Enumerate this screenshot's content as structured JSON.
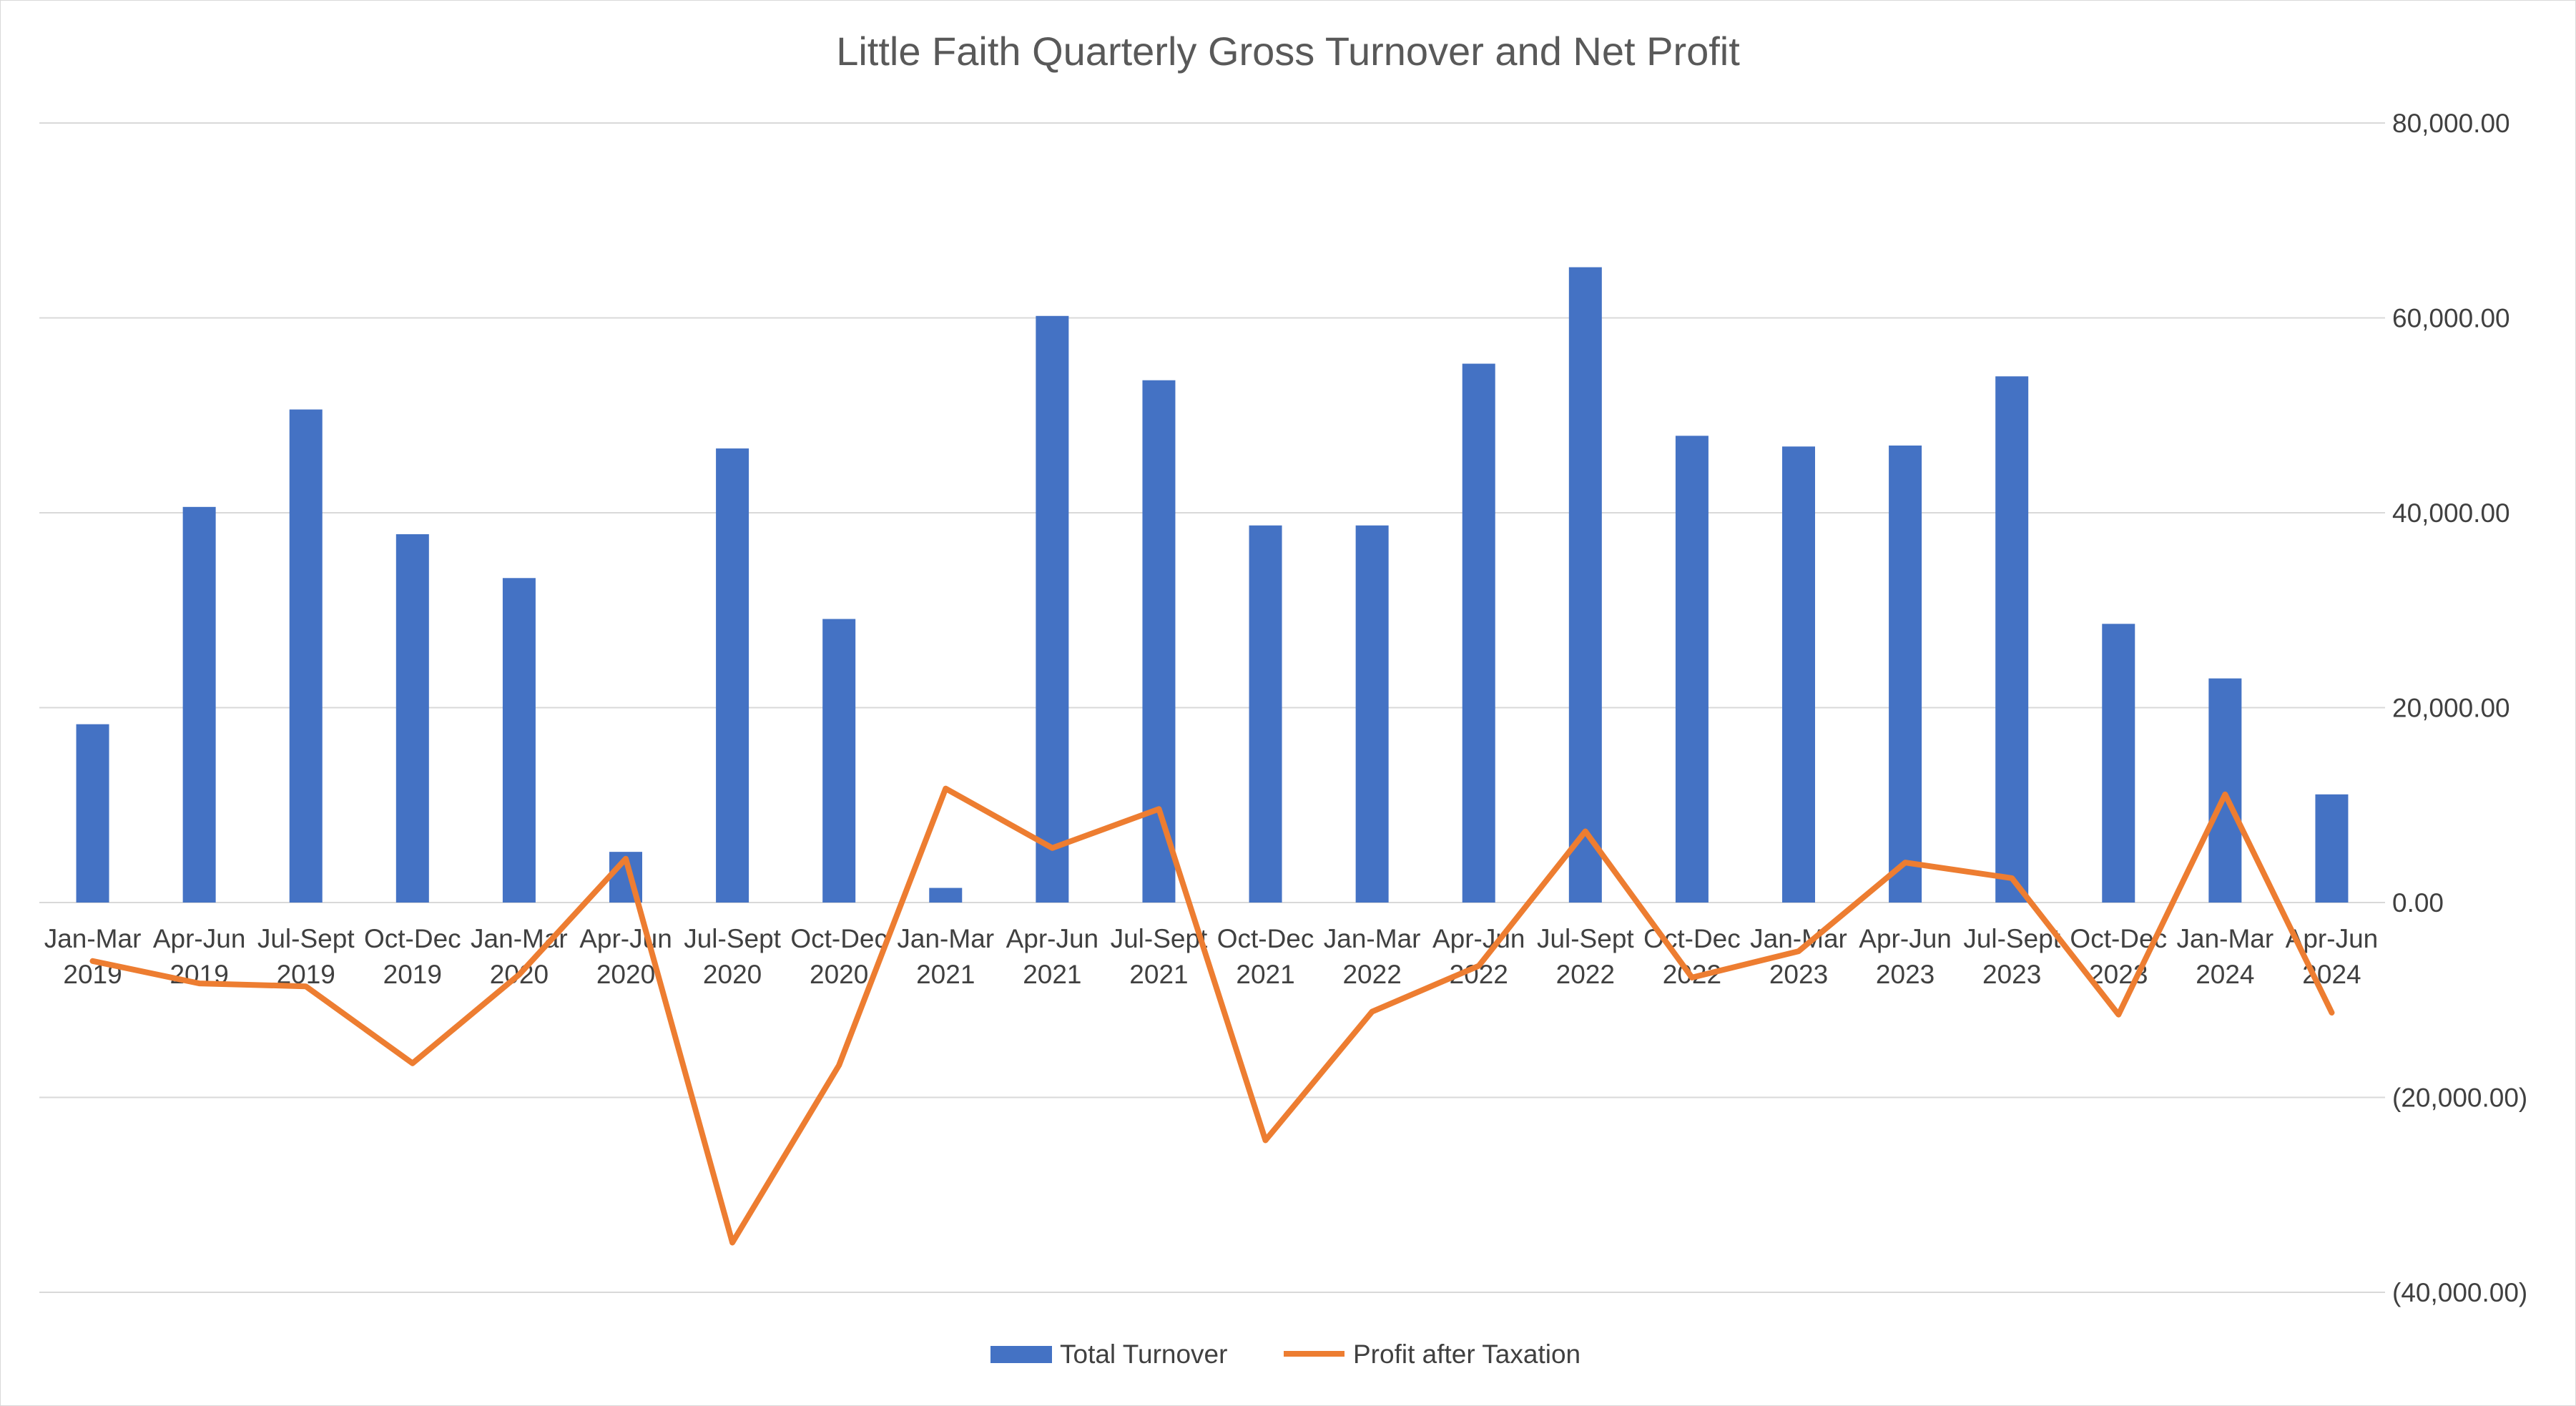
{
  "chart_data": {
    "type": "bar",
    "title": "Little Faith Quarterly Gross Turnover and Net Profit",
    "xlabel": "",
    "ylabel": "",
    "ylim": [
      -40000,
      80000
    ],
    "yticks": [
      80000,
      60000,
      40000,
      20000,
      0,
      -20000,
      -40000
    ],
    "ytick_labels": [
      "80,000.00",
      "60,000.00",
      "40,000.00",
      "20,000.00",
      "0.00",
      "(20,000.00)",
      "(40,000.00)"
    ],
    "grid": true,
    "legend_position": "bottom",
    "categories": [
      [
        "Jan-Mar",
        "2019"
      ],
      [
        "Apr-Jun",
        "2019"
      ],
      [
        "Jul-Sept",
        "2019"
      ],
      [
        "Oct-Dec",
        "2019"
      ],
      [
        "Jan-Mar",
        "2020"
      ],
      [
        "Apr-Jun",
        "2020"
      ],
      [
        "Jul-Sept",
        "2020"
      ],
      [
        "Oct-Dec",
        "2020"
      ],
      [
        "Jan-Mar",
        "2021"
      ],
      [
        "Apr-Jun",
        "2021"
      ],
      [
        "Jul-Sept",
        "2021"
      ],
      [
        "Oct-Dec",
        "2021"
      ],
      [
        "Jan-Mar",
        "2022"
      ],
      [
        "Apr-Jun",
        "2022"
      ],
      [
        "Jul-Sept",
        "2022"
      ],
      [
        "Oct-Dec",
        "2022"
      ],
      [
        "Jan-Mar",
        "2023"
      ],
      [
        "Apr-Jun",
        "2023"
      ],
      [
        "Jul-Sept",
        "2023"
      ],
      [
        "Oct-Dec",
        "2023"
      ],
      [
        "Jan-Mar",
        "2024"
      ],
      [
        "Apr-Jun",
        "2024"
      ]
    ],
    "series": [
      {
        "name": "Total Turnover",
        "type": "bar",
        "color": "#4472c4",
        "values": [
          18300,
          40600,
          50600,
          37800,
          33300,
          5200,
          46600,
          29100,
          1500,
          60200,
          53600,
          38700,
          38700,
          55300,
          65200,
          47900,
          46800,
          46900,
          54000,
          28600,
          23000,
          11100
        ]
      },
      {
        "name": "Profit after Taxation",
        "type": "line",
        "color": "#ed7d31",
        "values": [
          -6000,
          -8300,
          -8600,
          -16500,
          -7400,
          4500,
          -34900,
          -16700,
          11700,
          5600,
          9600,
          -24400,
          -11200,
          -6500,
          7300,
          -7700,
          -5000,
          4100,
          2500,
          -11500,
          11100,
          -11300
        ]
      }
    ]
  }
}
